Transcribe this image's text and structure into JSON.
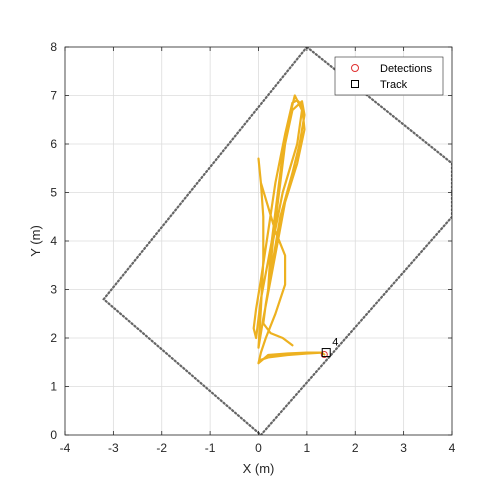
{
  "chart_data": {
    "type": "line",
    "xlabel": "X (m)",
    "ylabel": "Y (m)",
    "xlim": [
      -4,
      4
    ],
    "ylim": [
      0,
      8
    ],
    "xticks": [
      "-4",
      "-3",
      "-2",
      "-1",
      "0",
      "1",
      "2",
      "3",
      "4"
    ],
    "yticks": [
      "0",
      "1",
      "2",
      "3",
      "4",
      "5",
      "6",
      "7",
      "8"
    ],
    "grid": true,
    "legend": {
      "placement": "top-right",
      "entries": [
        {
          "label": "Detections",
          "marker": "circle",
          "color": "#e03030"
        },
        {
          "label": "Track",
          "marker": "square",
          "color": "#000000"
        }
      ]
    },
    "boundary": {
      "style": "dotted",
      "color": "#666666",
      "polygon": [
        [
          1.0,
          8.0
        ],
        [
          4.0,
          5.6
        ],
        [
          4.0,
          4.5
        ],
        [
          0.05,
          0.0
        ],
        [
          -3.2,
          2.8
        ],
        [
          1.0,
          8.0
        ]
      ]
    },
    "trajectory": {
      "color": "#edb120",
      "x": [
        0.0,
        0.2,
        0.6,
        1.0,
        1.3,
        1.36,
        1.3,
        1.0,
        0.6,
        0.2,
        0.05,
        0.0,
        0.05,
        0.15,
        0.35,
        0.55,
        0.55,
        0.35,
        0.2,
        0.05,
        0.0,
        0.05,
        0.1,
        0.1,
        0.05,
        0.0,
        0.1,
        0.25,
        0.4,
        0.55,
        0.8,
        0.95,
        0.9,
        0.8,
        0.7,
        0.55,
        0.45,
        0.35,
        0.25,
        0.2,
        0.3,
        0.5,
        0.8,
        0.9,
        0.75,
        0.55,
        0.35,
        0.2,
        0.05,
        -0.05,
        -0.1,
        -0.05,
        0.05,
        0.2,
        0.35,
        0.45,
        0.55,
        0.7,
        0.9,
        0.95,
        0.85,
        0.7,
        0.45,
        0.3,
        0.15,
        0.1,
        0.25,
        0.5,
        0.7
      ],
      "y": [
        1.48,
        1.65,
        1.68,
        1.7,
        1.7,
        1.66,
        1.7,
        1.68,
        1.65,
        1.6,
        1.55,
        1.48,
        1.7,
        2.0,
        2.5,
        3.1,
        3.7,
        4.2,
        4.7,
        5.2,
        5.7,
        5.2,
        4.5,
        3.6,
        2.6,
        1.8,
        2.4,
        3.2,
        4.0,
        4.8,
        5.6,
        6.3,
        6.8,
        6.9,
        6.85,
        6.2,
        5.4,
        4.6,
        3.8,
        3.0,
        4.0,
        5.0,
        6.0,
        6.7,
        7.0,
        6.2,
        5.2,
        4.2,
        3.2,
        2.6,
        2.2,
        2.0,
        2.8,
        3.6,
        4.4,
        5.2,
        6.0,
        6.7,
        6.88,
        6.6,
        6.0,
        5.4,
        4.5,
        3.6,
        2.7,
        2.3,
        2.1,
        2.0,
        1.85
      ]
    },
    "detections": [
      {
        "x": 1.36,
        "y": 1.66
      }
    ],
    "tracks": [
      {
        "id": "4",
        "x": 1.4,
        "y": 1.7
      }
    ]
  }
}
